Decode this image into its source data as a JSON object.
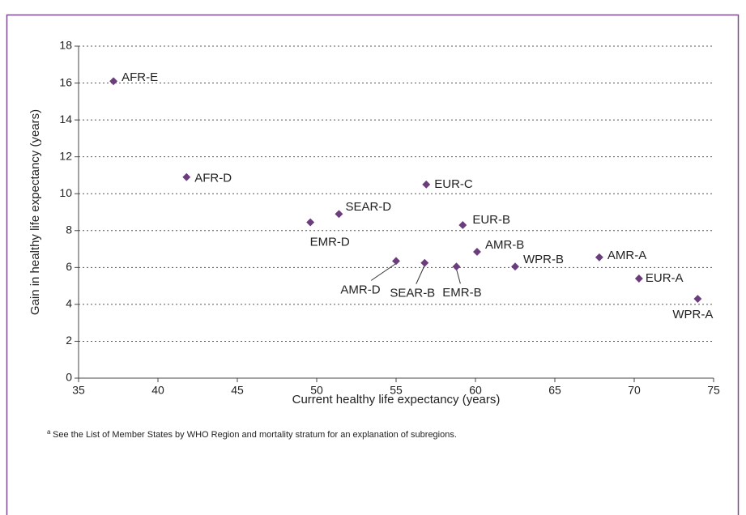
{
  "chart_data": {
    "type": "scatter",
    "x_label": "Current healthy life expectancy (years)",
    "y_label": "Gain in healthy life expectancy (years)",
    "color": "#6b3d7d",
    "grid": true,
    "xlim": [
      35,
      75
    ],
    "xticks": [
      35,
      40,
      45,
      50,
      55,
      60,
      65,
      70,
      75
    ],
    "ylim": [
      0,
      18
    ],
    "yticks": [
      0,
      2,
      4,
      6,
      8,
      10,
      12,
      14,
      16,
      18
    ],
    "labels": [
      "AFR-E",
      "AFR-D",
      "EMR-D",
      "SEAR-D",
      "EUR-C",
      "EUR-B",
      "AMR-B",
      "AMR-D",
      "SEAR-B",
      "EMR-B",
      "WPR-B",
      "AMR-A",
      "EUR-A",
      "WPR-A"
    ],
    "x": [
      37.2,
      41.8,
      49.6,
      51.4,
      56.9,
      59.2,
      60.1,
      55.0,
      56.8,
      58.8,
      62.5,
      67.8,
      70.3,
      74.0
    ],
    "y": [
      16.1,
      10.9,
      8.45,
      8.9,
      10.5,
      8.3,
      6.85,
      6.35,
      6.25,
      6.05,
      6.05,
      6.55,
      5.4,
      4.3
    ],
    "footnote": {
      "marker": "a",
      "text": "See the List of Member States by WHO Region and mortality stratum for an explanation of subregions."
    }
  }
}
